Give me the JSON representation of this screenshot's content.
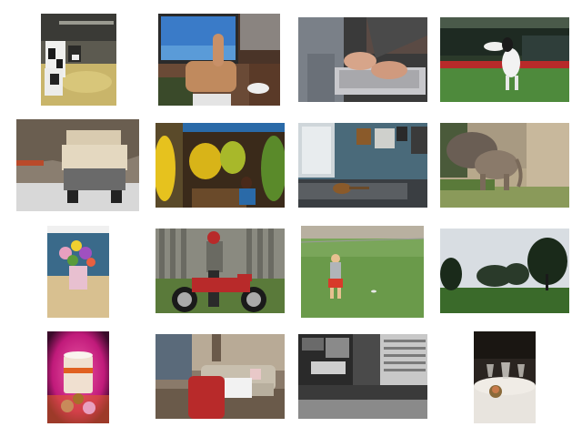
{
  "gallery": {
    "columns": 4,
    "rows": 4,
    "images": [
      {
        "subject": "cows-in-barn",
        "colors": [
          "#6b6458",
          "#c9b56a",
          "#2a2a28"
        ]
      },
      {
        "subject": "thumbs-up-at-computer",
        "colors": [
          "#3a6bb5",
          "#c08a5e",
          "#4a3428"
        ]
      },
      {
        "subject": "typing-on-laptop",
        "colors": [
          "#8a8f94",
          "#d7a58a",
          "#3a3a3a"
        ]
      },
      {
        "subject": "dog-catching-frisbee",
        "colors": [
          "#4e8a3c",
          "#f2f2f2",
          "#2b3a2a"
        ]
      },
      {
        "subject": "truck-with-sacks",
        "colors": [
          "#7a6a58",
          "#d9cbb0",
          "#b94a2a"
        ]
      },
      {
        "subject": "banana-vendor",
        "colors": [
          "#e6c21e",
          "#3a2a1a",
          "#2a6aa8"
        ]
      },
      {
        "subject": "bedroom-with-guitar",
        "colors": [
          "#4a6a7a",
          "#cfd6da",
          "#2a2a2a"
        ]
      },
      {
        "subject": "elephants",
        "colors": [
          "#8a7a6a",
          "#b8a98c",
          "#5a7a3a"
        ]
      },
      {
        "subject": "flower-vase-on-table",
        "colors": [
          "#3a6a8a",
          "#e8a0c0",
          "#d8c090"
        ]
      },
      {
        "subject": "man-with-motorcycle",
        "colors": [
          "#b82a2a",
          "#6a6a62",
          "#5a7a3a"
        ]
      },
      {
        "subject": "child-on-grass",
        "colors": [
          "#6a9a4a",
          "#d83a2a",
          "#b8b0a0"
        ]
      },
      {
        "subject": "park-with-trees",
        "colors": [
          "#3a6a2a",
          "#d8dde2",
          "#1a2a1a"
        ]
      },
      {
        "subject": "coffee-cup-and-donuts",
        "colors": [
          "#c01a7a",
          "#f0e0d0",
          "#3a0a2a"
        ]
      },
      {
        "subject": "living-room-sofa",
        "colors": [
          "#b82a2a",
          "#c8bfae",
          "#6a5a4a"
        ]
      },
      {
        "subject": "crowd-city-street",
        "colors": [
          "#6a6a6a",
          "#a8a8a8",
          "#2a2a2a"
        ]
      },
      {
        "subject": "table-setting-glasses",
        "colors": [
          "#2a2420",
          "#e8e4de",
          "#8a6a3a"
        ]
      }
    ]
  }
}
